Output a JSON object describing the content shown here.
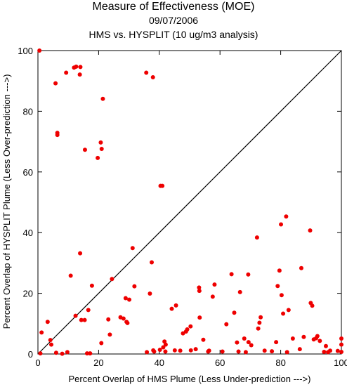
{
  "header": {
    "title": "Measure of Effectiveness (MOE)",
    "date": "09/07/2006",
    "subtitle": "HMS vs. HYSPLIT  (10 ug/m3 analysis)"
  },
  "chart_data": {
    "type": "scatter",
    "xlabel": "Percent Overlap of HMS Plume (Less Under-prediction --->)",
    "ylabel": "Percent Overlap of HYSPLIT Plume (Less Over-prediction --->)",
    "xlim": [
      0,
      100
    ],
    "ylim": [
      0,
      100
    ],
    "xticks": [
      0,
      20,
      40,
      60,
      80,
      100
    ],
    "yticks": [
      0,
      20,
      40,
      60,
      80,
      100
    ],
    "grid": false,
    "reference_line": "1:1 diagonal",
    "marker_color": "#ee0000",
    "points": [
      [
        0.5,
        100
      ],
      [
        5.8,
        89.2
      ],
      [
        6.4,
        72.9
      ],
      [
        6.4,
        72.2
      ],
      [
        9.3,
        92.7
      ],
      [
        11.9,
        94.4
      ],
      [
        12.6,
        94.7
      ],
      [
        14.0,
        94.6
      ],
      [
        13.8,
        92.1
      ],
      [
        15.5,
        67.3
      ],
      [
        19.7,
        64.6
      ],
      [
        20.7,
        69.7
      ],
      [
        21.0,
        67.6
      ],
      [
        21.4,
        84.1
      ],
      [
        35.7,
        92.7
      ],
      [
        37.9,
        91.2
      ],
      [
        40.4,
        55.4
      ],
      [
        41.0,
        55.4
      ],
      [
        0.8,
        0.2
      ],
      [
        1.2,
        7.1
      ],
      [
        3.2,
        10.6
      ],
      [
        4.1,
        4.6
      ],
      [
        4.4,
        3.1
      ],
      [
        6.0,
        0.4
      ],
      [
        8.0,
        0.1
      ],
      [
        9.7,
        0.6
      ],
      [
        10.8,
        25.8
      ],
      [
        12.4,
        12.6
      ],
      [
        13.9,
        33.2
      ],
      [
        14.3,
        11.2
      ],
      [
        15.4,
        11.2
      ],
      [
        16.6,
        14.5
      ],
      [
        16.2,
        0.2
      ],
      [
        17.2,
        0.2
      ],
      [
        17.8,
        22.5
      ],
      [
        20.9,
        3.6
      ],
      [
        23.2,
        11.4
      ],
      [
        23.7,
        6.4
      ],
      [
        24.4,
        24.7
      ],
      [
        27.2,
        12.1
      ],
      [
        28.2,
        11.7
      ],
      [
        28.9,
        18.4
      ],
      [
        29.2,
        10.6
      ],
      [
        29.5,
        10.2
      ],
      [
        30.1,
        17.9
      ],
      [
        31.2,
        34.9
      ],
      [
        31.8,
        22.3
      ],
      [
        35.9,
        0.6
      ],
      [
        36.9,
        19.9
      ],
      [
        37.5,
        30.2
      ],
      [
        38.0,
        1.2
      ],
      [
        38.3,
        0.8
      ],
      [
        40.2,
        1.4
      ],
      [
        41.3,
        2.2
      ],
      [
        41.7,
        4.1
      ],
      [
        42.0,
        0.8
      ],
      [
        42.1,
        3.1
      ],
      [
        44.1,
        14.9
      ],
      [
        45.1,
        1.2
      ],
      [
        45.5,
        16.0
      ],
      [
        46.9,
        1.1
      ],
      [
        47.8,
        6.8
      ],
      [
        48.8,
        7.4
      ],
      [
        49.2,
        8.1
      ],
      [
        50.3,
        9.1
      ],
      [
        50.4,
        1.2
      ],
      [
        52.0,
        1.6
      ],
      [
        53.1,
        21.9
      ],
      [
        53.2,
        20.8
      ],
      [
        53.3,
        12.0
      ],
      [
        54.5,
        4.7
      ],
      [
        56.1,
        0.8
      ],
      [
        56.4,
        1.1
      ],
      [
        57.6,
        18.9
      ],
      [
        58.2,
        22.9
      ],
      [
        60.8,
        0.8
      ],
      [
        62.1,
        9.8
      ],
      [
        63.8,
        26.3
      ],
      [
        64.7,
        13.6
      ],
      [
        65.6,
        3.8
      ],
      [
        66.1,
        0.8
      ],
      [
        66.6,
        20.4
      ],
      [
        68.0,
        5.1
      ],
      [
        68.5,
        0.6
      ],
      [
        69.3,
        26.2
      ],
      [
        69.4,
        3.9
      ],
      [
        70.3,
        2.9
      ],
      [
        72.2,
        38.4
      ],
      [
        72.6,
        8.4
      ],
      [
        73.0,
        10.3
      ],
      [
        73.4,
        12.1
      ],
      [
        74.7,
        1.1
      ],
      [
        77.1,
        0.9
      ],
      [
        78.5,
        3.9
      ],
      [
        79.0,
        22.4
      ],
      [
        79.6,
        27.5
      ],
      [
        80.1,
        42.7
      ],
      [
        80.3,
        19.4
      ],
      [
        80.8,
        13.3
      ],
      [
        81.8,
        45.3
      ],
      [
        82.1,
        0.6
      ],
      [
        82.6,
        14.5
      ],
      [
        84.0,
        5.1
      ],
      [
        86.3,
        1.6
      ],
      [
        86.8,
        28.3
      ],
      [
        87.6,
        5.6
      ],
      [
        89.7,
        40.7
      ],
      [
        89.9,
        16.8
      ],
      [
        90.4,
        15.9
      ],
      [
        90.9,
        4.8
      ],
      [
        91.7,
        5.2
      ],
      [
        92.1,
        5.9
      ],
      [
        92.9,
        4.3
      ],
      [
        94.3,
        0.7
      ],
      [
        94.9,
        2.6
      ],
      [
        95.6,
        0.6
      ],
      [
        96.3,
        1.1
      ],
      [
        98.8,
        1.0
      ],
      [
        100,
        5.1
      ],
      [
        100,
        3.1
      ],
      [
        100,
        0.7
      ]
    ]
  }
}
